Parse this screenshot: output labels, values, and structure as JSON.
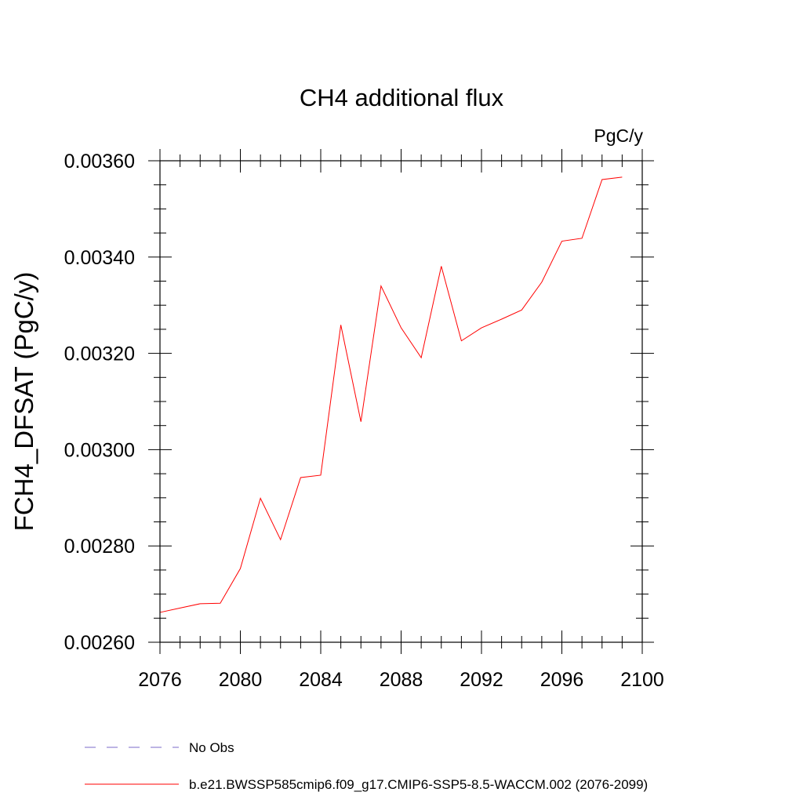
{
  "chart_data": {
    "type": "line",
    "title": "CH4 additional flux",
    "units": "PgC/y",
    "xlabel": "",
    "ylabel": "FCH4_DFSAT  (PgC/y)",
    "xlim": [
      2076,
      2100
    ],
    "ylim": [
      0.0026,
      0.0036
    ],
    "x_ticks": [
      2076,
      2080,
      2084,
      2088,
      2092,
      2096,
      2100
    ],
    "x_tick_labels": [
      "2076",
      "2080",
      "2084",
      "2088",
      "2092",
      "2096",
      "2100"
    ],
    "y_ticks": [
      0.0026,
      0.0028,
      0.003,
      0.0032,
      0.0034,
      0.0036
    ],
    "y_tick_labels": [
      "0.00260",
      "0.00280",
      "0.00300",
      "0.00320",
      "0.00340",
      "0.00360"
    ],
    "grid": false,
    "series": [
      {
        "name": "b.e21.BWSSP585cmip6.f09_g17.CMIP6-SSP5-8.5-WACCM.002 (2076-2099)",
        "color": "#ff0000",
        "x": [
          2076,
          2077,
          2078,
          2079,
          2080,
          2081,
          2082,
          2083,
          2084,
          2085,
          2086,
          2087,
          2088,
          2089,
          2090,
          2091,
          2092,
          2093,
          2094,
          2095,
          2096,
          2097,
          2098,
          2099
        ],
        "y": [
          0.002662,
          0.002671,
          0.00268,
          0.002681,
          0.002753,
          0.002899,
          0.002813,
          0.002942,
          0.002947,
          0.003259,
          0.003058,
          0.00334,
          0.003253,
          0.003191,
          0.003381,
          0.003226,
          0.003253,
          0.003271,
          0.00329,
          0.003348,
          0.003433,
          0.003439,
          0.003561,
          0.003566
        ]
      }
    ],
    "legend": {
      "placement": "bottom",
      "entries": [
        {
          "label": "No Obs",
          "style": "dashed",
          "color": "#7b68c8"
        },
        {
          "label": "b.e21.BWSSP585cmip6.f09_g17.CMIP6-SSP5-8.5-WACCM.002 (2076-2099)",
          "style": "solid",
          "color": "#ff0000"
        }
      ]
    }
  }
}
